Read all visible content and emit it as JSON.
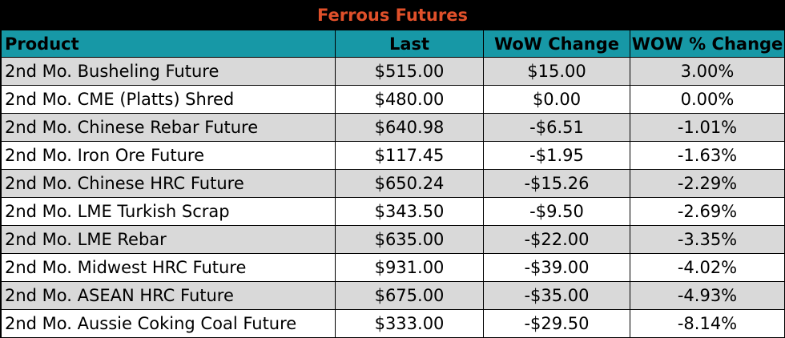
{
  "title": "Ferrous Futures",
  "colors": {
    "title_bg": "#000000",
    "title_text": "#e0502a",
    "header_bg": "#1798a6",
    "row_alt_bg": "#d9d9d9",
    "row_bg": "#ffffff"
  },
  "headers": {
    "product": "Product",
    "last": "Last",
    "wow_change": "WoW Change",
    "wow_pct_change": "WOW % Change"
  },
  "rows": [
    {
      "product": "2nd Mo. Busheling Future",
      "last": "$515.00",
      "wow_change": "$15.00",
      "wow_pct_change": "3.00%"
    },
    {
      "product": "2nd Mo. CME (Platts) Shred",
      "last": "$480.00",
      "wow_change": "$0.00",
      "wow_pct_change": "0.00%"
    },
    {
      "product": "2nd Mo. Chinese Rebar Future",
      "last": "$640.98",
      "wow_change": "-$6.51",
      "wow_pct_change": "-1.01%"
    },
    {
      "product": "2nd Mo. Iron Ore Future",
      "last": "$117.45",
      "wow_change": "-$1.95",
      "wow_pct_change": "-1.63%"
    },
    {
      "product": "2nd Mo. Chinese HRC Future",
      "last": "$650.24",
      "wow_change": "-$15.26",
      "wow_pct_change": "-2.29%"
    },
    {
      "product": "2nd Mo. LME Turkish Scrap",
      "last": "$343.50",
      "wow_change": "-$9.50",
      "wow_pct_change": "-2.69%"
    },
    {
      "product": "2nd Mo. LME Rebar",
      "last": "$635.00",
      "wow_change": "-$22.00",
      "wow_pct_change": "-3.35%"
    },
    {
      "product": "2nd Mo. Midwest HRC Future",
      "last": "$931.00",
      "wow_change": "-$39.00",
      "wow_pct_change": "-4.02%"
    },
    {
      "product": "2nd Mo. ASEAN HRC Future",
      "last": "$675.00",
      "wow_change": "-$35.00",
      "wow_pct_change": "-4.93%"
    },
    {
      "product": "2nd Mo. Aussie Coking Coal Future",
      "last": "$333.00",
      "wow_change": "-$29.50",
      "wow_pct_change": "-8.14%"
    }
  ]
}
